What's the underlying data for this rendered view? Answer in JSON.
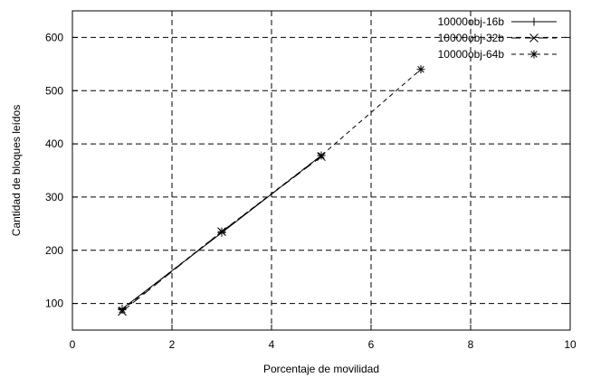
{
  "chart_data": {
    "type": "line",
    "xlabel": "Porcentaje de movilidad",
    "ylabel": "Cantidad de bloques leídos",
    "xlim": [
      0,
      10
    ],
    "ylim": [
      50,
      650
    ],
    "xticks": [
      "0",
      "2",
      "4",
      "6",
      "8",
      "10"
    ],
    "yticks": [
      "100",
      "200",
      "300",
      "400",
      "500",
      "600"
    ],
    "grid": true,
    "legend_position": "top-right",
    "series": [
      {
        "name": "10000obj-16b",
        "marker": "plus",
        "dash": "solid",
        "x": [
          1,
          3,
          5
        ],
        "y": [
          90,
          233,
          378
        ]
      },
      {
        "name": "10000obj-32b",
        "marker": "cross",
        "dash": "long-dash",
        "x": [
          1,
          3,
          5
        ],
        "y": [
          85,
          235,
          376
        ]
      },
      {
        "name": "10000obj-64b",
        "marker": "star",
        "dash": "short-dash",
        "x": [
          1,
          3,
          5,
          7
        ],
        "y": [
          88,
          235,
          378,
          540
        ]
      }
    ]
  }
}
